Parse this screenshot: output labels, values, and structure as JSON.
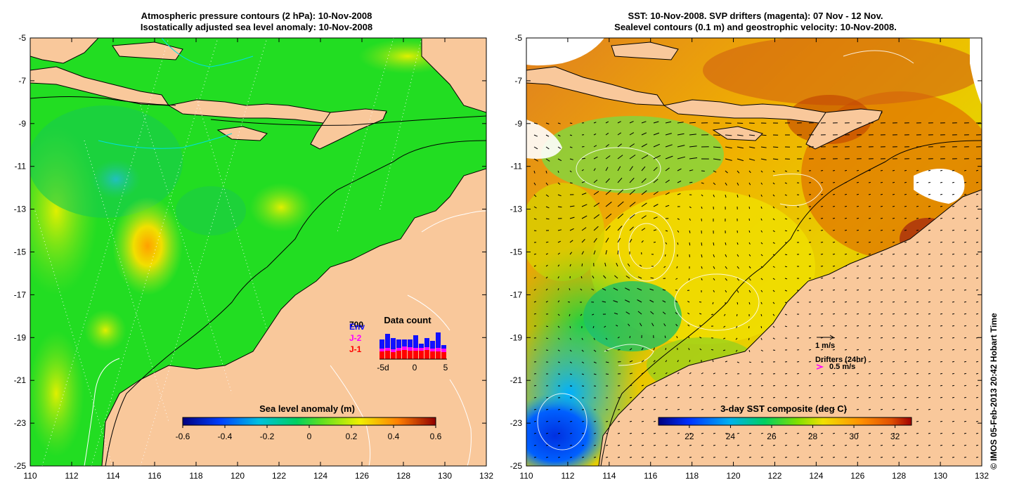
{
  "left_panel": {
    "title_line1": "Atmospheric pressure contours (2 hPa): 10-Nov-2008",
    "title_line2": "Isostatically adjusted sea level anomaly: 10-Nov-2008",
    "x_ticks": [
      "110",
      "112",
      "114",
      "116",
      "118",
      "120",
      "122",
      "124",
      "126",
      "128",
      "130",
      "132"
    ],
    "y_ticks": [
      "-5",
      "-7",
      "-9",
      "-11",
      "-13",
      "-15",
      "-17",
      "-19",
      "-21",
      "-23",
      "-25"
    ],
    "colorbar": {
      "label": "Sea level anomaly (m)",
      "ticks": [
        "-0.6",
        "-0.4",
        "-0.2",
        "0",
        "0.2",
        "0.4",
        "0.6"
      ],
      "range": [
        -0.6,
        0.6
      ]
    },
    "data_count": {
      "title": "Data count",
      "max_label": "700",
      "legend": [
        "Env",
        "J-2",
        "J-1"
      ],
      "colors": {
        "Env": "#1010ff",
        "J-2": "#ff00ff",
        "J-1": "#ff0000"
      },
      "x_ticks": [
        "-5d",
        "0",
        "5"
      ]
    }
  },
  "right_panel": {
    "title_line1": "SST: 10-Nov-2008. SVP drifters (magenta): 07 Nov - 12 Nov.",
    "title_line2": "Sealevel contours (0.1 m) and geostrophic velocity: 10-Nov-2008.",
    "x_ticks": [
      "110",
      "112",
      "114",
      "116",
      "118",
      "120",
      "122",
      "124",
      "126",
      "128",
      "130",
      "132"
    ],
    "y_ticks": [
      "-5",
      "-7",
      "-9",
      "-11",
      "-13",
      "-15",
      "-17",
      "-19",
      "-21",
      "-23",
      "-25"
    ],
    "colorbar": {
      "label": "3-day SST composite (deg C)",
      "ticks": [
        "22",
        "24",
        "26",
        "28",
        "30",
        "32"
      ],
      "range": [
        20.5,
        32.8
      ]
    },
    "velocity_scale": "1 m/s",
    "drifters_label": "Drifters (24hr)",
    "drifter_scale": "0.5 m/s"
  },
  "credit": "© IMOS 05-Feb-2013 20:42 Hobart Time",
  "colors": {
    "land": "#f9c89b",
    "ocean_green": "#22e030",
    "contour": "#ffffff"
  }
}
